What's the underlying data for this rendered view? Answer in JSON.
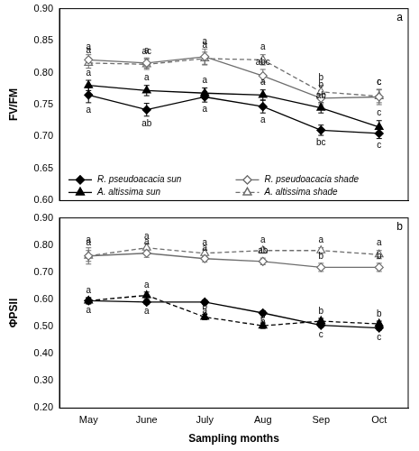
{
  "chart_data": [
    {
      "type": "line",
      "annotation": "a",
      "y_label": "FV/FM",
      "categories": [
        "May",
        "June",
        "July",
        "Aug",
        "Sep",
        "Oct"
      ],
      "ylim": [
        0.6,
        0.9
      ],
      "yticks": [
        {
          "value": 0.6,
          "label": "0.60"
        },
        {
          "value": 0.65,
          "label": "0.65"
        },
        {
          "value": 0.7,
          "label": "0.70"
        },
        {
          "value": 0.75,
          "label": "0.75"
        },
        {
          "value": 0.8,
          "label": "0.80"
        },
        {
          "value": 0.85,
          "label": "0.85"
        },
        {
          "value": 0.9,
          "label": "0.90"
        }
      ],
      "grid": false,
      "legend": "lower left",
      "tick_labels": "y",
      "series": [
        {
          "name": "R. pseudoacacia sun",
          "color": "#000000",
          "marker": "diamond",
          "line_style": "solid",
          "values": [
            0.765,
            0.742,
            0.762,
            0.747,
            0.71,
            0.705
          ],
          "errors": [
            0.012,
            0.01,
            0.008,
            0.01,
            0.008,
            0.008
          ],
          "letters": [
            "a",
            "ab",
            "a",
            "a",
            "bc",
            "c"
          ]
        },
        {
          "name": "R. pseudoacacia shade",
          "color": "#6e6e6e",
          "marker": "diamond-open",
          "line_style": "solid",
          "values": [
            0.82,
            0.815,
            0.825,
            0.795,
            0.76,
            0.762
          ],
          "errors": [
            0.008,
            0.008,
            0.012,
            0.01,
            0.01,
            0.012
          ],
          "letters": [
            "a",
            "a",
            "a",
            "abc",
            "b",
            "c"
          ]
        },
        {
          "name": "A. altissima sun",
          "color": "#000000",
          "marker": "triangle",
          "line_style": "solid",
          "values": [
            0.78,
            0.772,
            0.768,
            0.765,
            0.745,
            0.715
          ],
          "errors": [
            0.008,
            0.008,
            0.008,
            0.008,
            0.008,
            0.01
          ],
          "letters": [
            "a",
            "a",
            "a",
            "a",
            "ab",
            "c"
          ]
        },
        {
          "name": "A. altissima shade",
          "color": "#6e6e6e",
          "marker": "triangle-open",
          "line_style": "dashed",
          "values": [
            0.815,
            0.813,
            0.822,
            0.82,
            0.77,
            0.763
          ],
          "errors": [
            0.008,
            0.008,
            0.01,
            0.008,
            0.01,
            0.01
          ],
          "letters": [
            "a",
            "ac",
            "a",
            "a",
            "b",
            "c"
          ]
        }
      ]
    },
    {
      "type": "line",
      "annotation": "b",
      "y_label": "ΦPSII",
      "x_label": "Sampling months",
      "categories": [
        "May",
        "June",
        "July",
        "Aug",
        "Sep",
        "Oct"
      ],
      "ylim": [
        0.2,
        0.9
      ],
      "yticks": [
        {
          "value": 0.2,
          "label": "0.20"
        },
        {
          "value": 0.3,
          "label": "0.30"
        },
        {
          "value": 0.4,
          "label": "0.40"
        },
        {
          "value": 0.5,
          "label": "0.50"
        },
        {
          "value": 0.6,
          "label": "0.60"
        },
        {
          "value": 0.7,
          "label": "0.70"
        },
        {
          "value": 0.8,
          "label": "0.80"
        },
        {
          "value": 0.9,
          "label": "0.90"
        }
      ],
      "grid": false,
      "series": [
        {
          "name": "R. pseudoacacia sun",
          "color": "#000000",
          "marker": "diamond",
          "line_style": "solid",
          "values": [
            0.595,
            0.59,
            0.59,
            0.55,
            0.505,
            0.495
          ],
          "errors": [
            0.01,
            0.008,
            0.008,
            0.008,
            0.008,
            0.008
          ],
          "letters": [
            "a",
            "a",
            "a",
            "b",
            "c",
            "c"
          ]
        },
        {
          "name": "R. pseudoacacia shade",
          "color": "#6e6e6e",
          "marker": "diamond-open",
          "line_style": "solid",
          "values": [
            0.76,
            0.77,
            0.75,
            0.74,
            0.718,
            0.718
          ],
          "errors": [
            0.03,
            0.015,
            0.012,
            0.012,
            0.015,
            0.015
          ],
          "letters": [
            "a",
            "a",
            "a",
            "ab",
            "b",
            "b"
          ]
        },
        {
          "name": "A. altissima sun",
          "color": "#000000",
          "marker": "triangle",
          "line_style": "dashed",
          "values": [
            0.595,
            0.615,
            0.535,
            0.503,
            0.52,
            0.51
          ],
          "errors": [
            0.012,
            0.012,
            0.01,
            0.01,
            0.01,
            0.01
          ],
          "letters": [
            "a",
            "a",
            "b",
            "b",
            "b",
            "b"
          ]
        },
        {
          "name": "A. altissima shade",
          "color": "#6e6e6e",
          "marker": "triangle-open",
          "line_style": "dashed",
          "values": [
            0.76,
            0.79,
            0.77,
            0.78,
            0.78,
            0.765
          ],
          "errors": [
            0.02,
            0.015,
            0.012,
            0.01,
            0.01,
            0.015
          ],
          "letters": [
            "a",
            "a",
            "a",
            "a",
            "a",
            "a"
          ]
        }
      ]
    }
  ]
}
